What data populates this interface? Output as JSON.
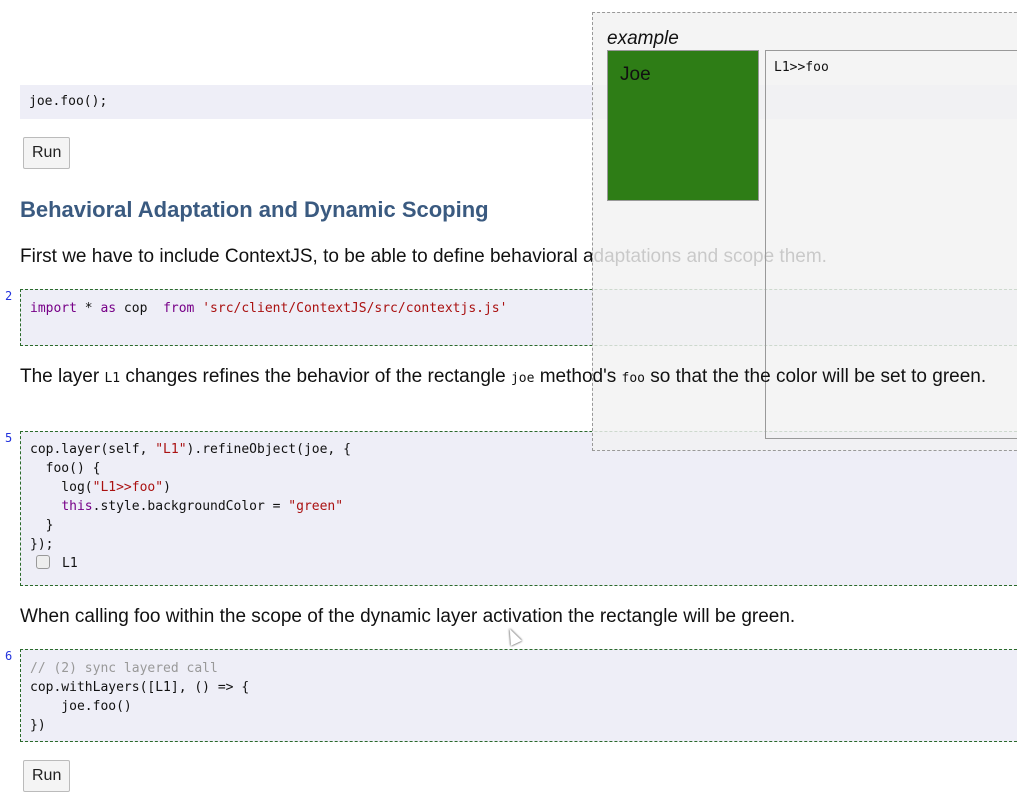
{
  "cell0": {
    "code": "joe.foo();"
  },
  "run_label": "Run",
  "heading": "Behavioral Adaptation and Dynamic Scoping",
  "para1": "First we have to include ContextJS, to be able to define behavioral adaptations and scope them.",
  "cell2": {
    "line": "2",
    "kw1": "import",
    "t1": " * ",
    "kw2": "as",
    "t2": " cop  ",
    "kw3": "from",
    "t3": " ",
    "str": "'src/client/ContextJS/src/contextjs.js'"
  },
  "para2": {
    "a": "The layer ",
    "code1": "L1",
    "b": " changes refines the behavior of the rectangle ",
    "code2": "joe",
    "c": " method's ",
    "code3": "foo",
    "d": " so that the the color will be set to green."
  },
  "cell5": {
    "line": "5",
    "l1a": "cop.layer(self, ",
    "l1s": "\"L1\"",
    "l1b": ").refineObject(joe, {",
    "l2": "  foo() {",
    "l3a": "    log(",
    "l3s": "\"L1>>foo\"",
    "l3b": ")",
    "l4k": "this",
    "l4a": ".style.backgroundColor = ",
    "l4s": "\"green\"",
    "l5": "  }",
    "l6": "});",
    "checkbox_label": "L1",
    "checkbox_checked": false
  },
  "para3": "When calling foo within the scope of the dynamic layer activation the rectangle will be green.",
  "cell6": {
    "line": "6",
    "l1": "// (2) sync layered call",
    "l2": "cop.withLayers([L1], () => {",
    "l3": "    joe.foo()",
    "l4": "})"
  },
  "example": {
    "title": "example",
    "rect_label": "Joe",
    "rect_color": "#2e7d16",
    "log": "L1>>foo"
  }
}
